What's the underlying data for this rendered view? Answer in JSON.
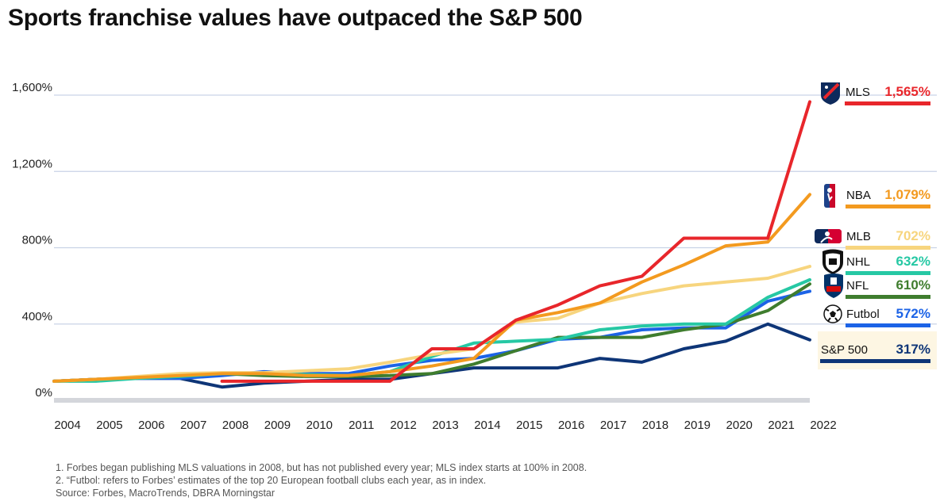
{
  "chart_data": {
    "type": "line",
    "title": "Sports franchise values have outpaced the S&P 500",
    "x": [
      "2004",
      "2005",
      "2006",
      "2007",
      "2008",
      "2009",
      "2010",
      "2011",
      "2012",
      "2013",
      "2014",
      "2015",
      "2016",
      "2017",
      "2018",
      "2019",
      "2020",
      "2021",
      "2022"
    ],
    "y_ticks": [
      "0%",
      "400%",
      "800%",
      "1,200%",
      "1,600%"
    ],
    "ylim": [
      0,
      1700
    ],
    "grid": true,
    "legend_placement": "right",
    "series": [
      {
        "name": "MLS",
        "final_label": "1,565%",
        "color": "#e8262b",
        "icon": "mls-crest-icon",
        "values": [
          null,
          null,
          null,
          null,
          100,
          100,
          100,
          100,
          100,
          270,
          270,
          420,
          500,
          600,
          650,
          850,
          850,
          850,
          1565
        ]
      },
      {
        "name": "NBA",
        "final_label": "1,079%",
        "color": "#f39a1f",
        "icon": "nba-logo-icon",
        "values": [
          100,
          110,
          120,
          130,
          140,
          140,
          130,
          130,
          150,
          180,
          220,
          420,
          460,
          510,
          620,
          710,
          810,
          830,
          1079
        ]
      },
      {
        "name": "MLB",
        "final_label": "702%",
        "color": "#f7d57e",
        "icon": "mlb-logo-icon",
        "values": [
          100,
          110,
          125,
          140,
          145,
          145,
          155,
          165,
          200,
          240,
          270,
          410,
          430,
          510,
          560,
          600,
          620,
          640,
          702
        ]
      },
      {
        "name": "NHL",
        "final_label": "632%",
        "color": "#26c8a4",
        "icon": "nhl-shield-icon",
        "values": [
          100,
          100,
          115,
          125,
          140,
          140,
          135,
          130,
          150,
          230,
          300,
          310,
          320,
          370,
          390,
          400,
          400,
          540,
          632
        ]
      },
      {
        "name": "NFL",
        "final_label": "610%",
        "color": "#3f7d2e",
        "icon": "nfl-shield-icon",
        "values": [
          100,
          110,
          120,
          130,
          140,
          130,
          125,
          125,
          130,
          140,
          190,
          260,
          330,
          330,
          330,
          370,
          400,
          470,
          610
        ]
      },
      {
        "name": "Futbol",
        "final_label": "572%",
        "color": "#1c63e6",
        "icon": "soccer-ball-icon",
        "values": [
          100,
          110,
          115,
          115,
          130,
          150,
          140,
          140,
          180,
          210,
          220,
          260,
          320,
          330,
          370,
          380,
          380,
          520,
          572
        ]
      },
      {
        "name": "S&P 500",
        "final_label": "317%",
        "color": "#0e3577",
        "icon": "",
        "values": [
          100,
          110,
          115,
          115,
          70,
          90,
          100,
          110,
          110,
          140,
          170,
          170,
          170,
          220,
          200,
          270,
          310,
          400,
          317
        ]
      }
    ],
    "footnotes": [
      "1. Forbes began publishing MLS valuations in 2008, but has not published every year; MLS index starts at 100% in 2008.",
      "2. “Futbol: refers to Forbes’ estimates of the top 20 European football clubs each year, as in index.",
      "Source: Forbes, MacroTrends, DBRA Morningstar"
    ]
  }
}
